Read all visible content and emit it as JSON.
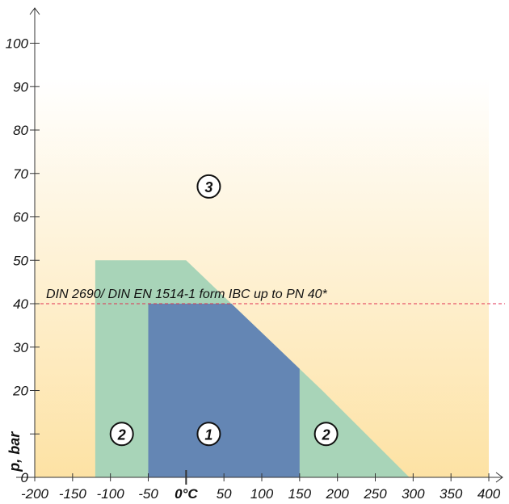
{
  "chart_data": {
    "type": "area",
    "title": "",
    "xlabel": "°C",
    "ylabel": "p, bar",
    "xlim": [
      -200,
      400
    ],
    "ylim": [
      0,
      100
    ],
    "x_ticks": [
      -200,
      -150,
      -100,
      -50,
      0,
      50,
      100,
      150,
      200,
      250,
      300,
      350,
      400
    ],
    "x_tick_labels": [
      "-200",
      "-150",
      "-100",
      "-50",
      "0°C",
      "50",
      "100",
      "150",
      "200",
      "250",
      "300",
      "350",
      "400"
    ],
    "y_ticks": [
      0,
      10,
      20,
      30,
      40,
      50,
      60,
      70,
      80,
      90,
      100
    ],
    "y_tick_labels": [
      "0",
      "",
      "20",
      "30",
      "40",
      "50",
      "60",
      "70",
      "80",
      "90",
      "100"
    ],
    "grid": false,
    "zones": [
      {
        "name": "2",
        "color": "#a8d4b8",
        "polygon": [
          [
            -120,
            0
          ],
          [
            -120,
            50
          ],
          [
            0,
            50
          ],
          [
            180,
            20
          ],
          [
            295,
            0
          ]
        ]
      },
      {
        "name": "1",
        "color": "#6486b4",
        "polygon": [
          [
            -50,
            0
          ],
          [
            -50,
            40
          ],
          [
            60,
            40
          ],
          [
            150,
            25
          ],
          [
            150,
            0
          ]
        ]
      }
    ],
    "zone_labels": [
      {
        "label": "3",
        "x": 30,
        "y": 67
      },
      {
        "label": "2",
        "x": -85,
        "y": 10
      },
      {
        "label": "1",
        "x": 30,
        "y": 10
      },
      {
        "label": "2",
        "x": 185,
        "y": 10
      }
    ],
    "reference_line": {
      "y": 40,
      "label": "DIN 2690/ DIN EN 1514-1 form IBC up to PN 40*",
      "color": "#e03050"
    },
    "background_gradient": [
      "#fde7b0",
      "#ffffff"
    ]
  }
}
